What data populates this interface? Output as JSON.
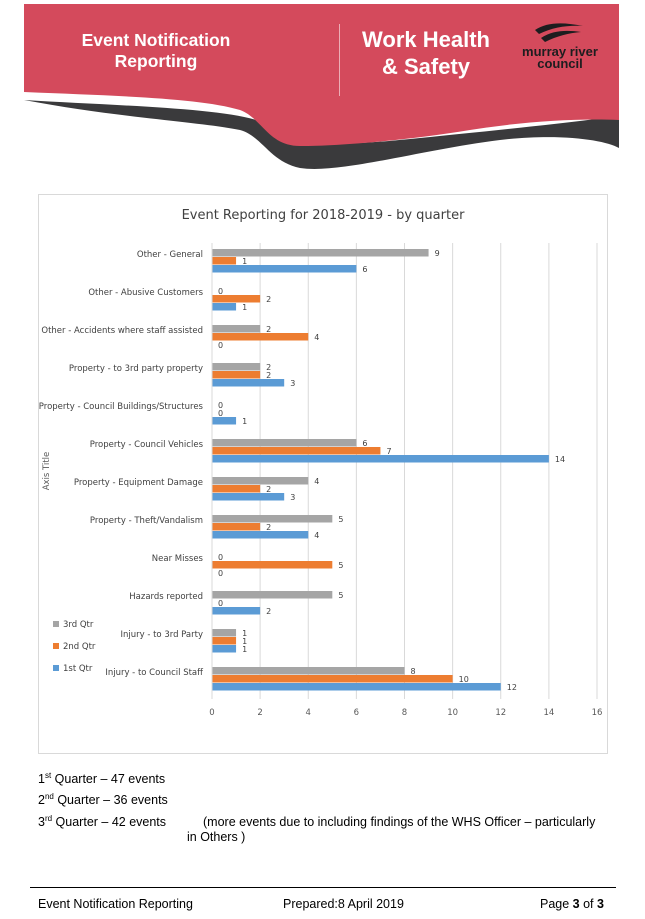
{
  "header": {
    "section_title_line1": "Event Notification",
    "section_title_line2": "Reporting",
    "doc_title_line1": "Work Health",
    "doc_title_line2": "& Safety",
    "logo_line1": "murray river",
    "logo_line2": "council",
    "colors": {
      "banner": "#d44a5c",
      "swoosh": "#3a3a3c"
    }
  },
  "chart_data": {
    "type": "bar",
    "orientation": "horizontal",
    "title": "Event Reporting for 2018-2019 - by quarter",
    "ylabel": "Axis Title",
    "xlabel": "",
    "xlim": [
      0,
      16
    ],
    "xticks": [
      0,
      2,
      4,
      6,
      8,
      10,
      12,
      14,
      16
    ],
    "grid": true,
    "legend_position": "left",
    "categories": [
      "Other - General",
      "Other - Abusive Customers",
      "Other - Accidents where staff assisted",
      "Property - to 3rd party property",
      "Property - Council Buildings/Structures",
      "Property - Council Vehicles",
      "Property - Equipment Damage",
      "Property - Theft/Vandalism",
      "Near Misses",
      "Hazards reported",
      "Injury - to 3rd Party",
      "Injury - to Council Staff"
    ],
    "series": [
      {
        "name": "3rd Qtr",
        "color": "#a5a5a5",
        "values": [
          9,
          0,
          2,
          2,
          0,
          6,
          4,
          5,
          0,
          5,
          1,
          8
        ]
      },
      {
        "name": "2nd Qtr",
        "color": "#ed7d31",
        "values": [
          1,
          2,
          4,
          2,
          0,
          7,
          2,
          2,
          5,
          0,
          1,
          10
        ]
      },
      {
        "name": "1st Qtr",
        "color": "#5b9bd5",
        "values": [
          6,
          1,
          0,
          3,
          1,
          14,
          3,
          4,
          0,
          2,
          1,
          12
        ]
      }
    ]
  },
  "summary": {
    "q1_num": "1",
    "q1_sup": "st",
    "q1_text": " Quarter – 47 events",
    "q2_num": "2",
    "q2_sup": "nd",
    "q2_text": " Quarter – 36 events",
    "q3_num": "3",
    "q3_sup": "rd",
    "q3_text": " Quarter – 42 events",
    "note": "(more events due to including findings of the WHS Officer – particularly in Others )"
  },
  "footer": {
    "left": "Event Notification Reporting",
    "center": "Prepared:8 April 2019",
    "page_prefix": "Page ",
    "page_current": "3",
    "page_mid": " of ",
    "page_total": "3"
  }
}
